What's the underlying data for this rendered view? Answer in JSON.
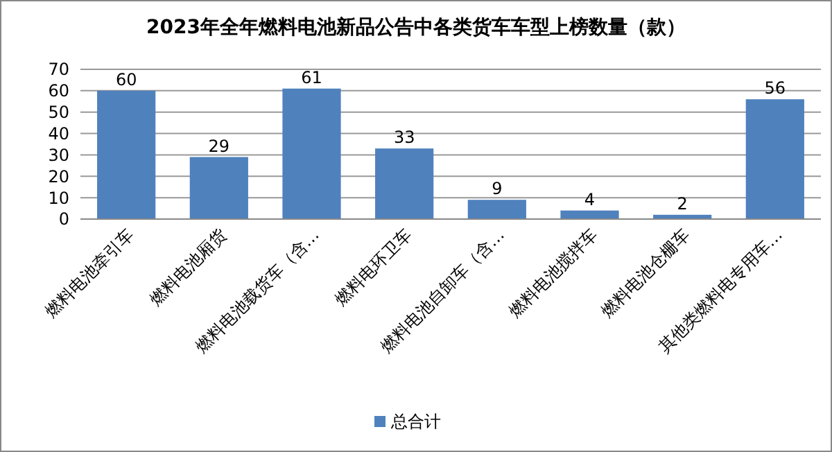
{
  "chart_data": {
    "type": "bar",
    "title": "2023年全年燃料电池新品公告中各类货车车型上榜数量（款）",
    "categories": [
      "燃料电池牵引车",
      "燃料电池厢货",
      "燃料电池载货车（含…",
      "燃料电环卫车",
      "燃料电池自卸车（含…",
      "燃料电池搅拌车",
      "燃料电池仓栅车",
      "其他类燃料电专用车…"
    ],
    "series": [
      {
        "name": "总合计",
        "color": "#4f81bd",
        "values": [
          60,
          29,
          61,
          33,
          9,
          4,
          2,
          56
        ]
      }
    ],
    "ylim": [
      0,
      70
    ],
    "yticks": [
      0,
      10,
      20,
      30,
      40,
      50,
      60,
      70
    ],
    "grid": "y",
    "legend": "bottom",
    "data_labels": true
  }
}
